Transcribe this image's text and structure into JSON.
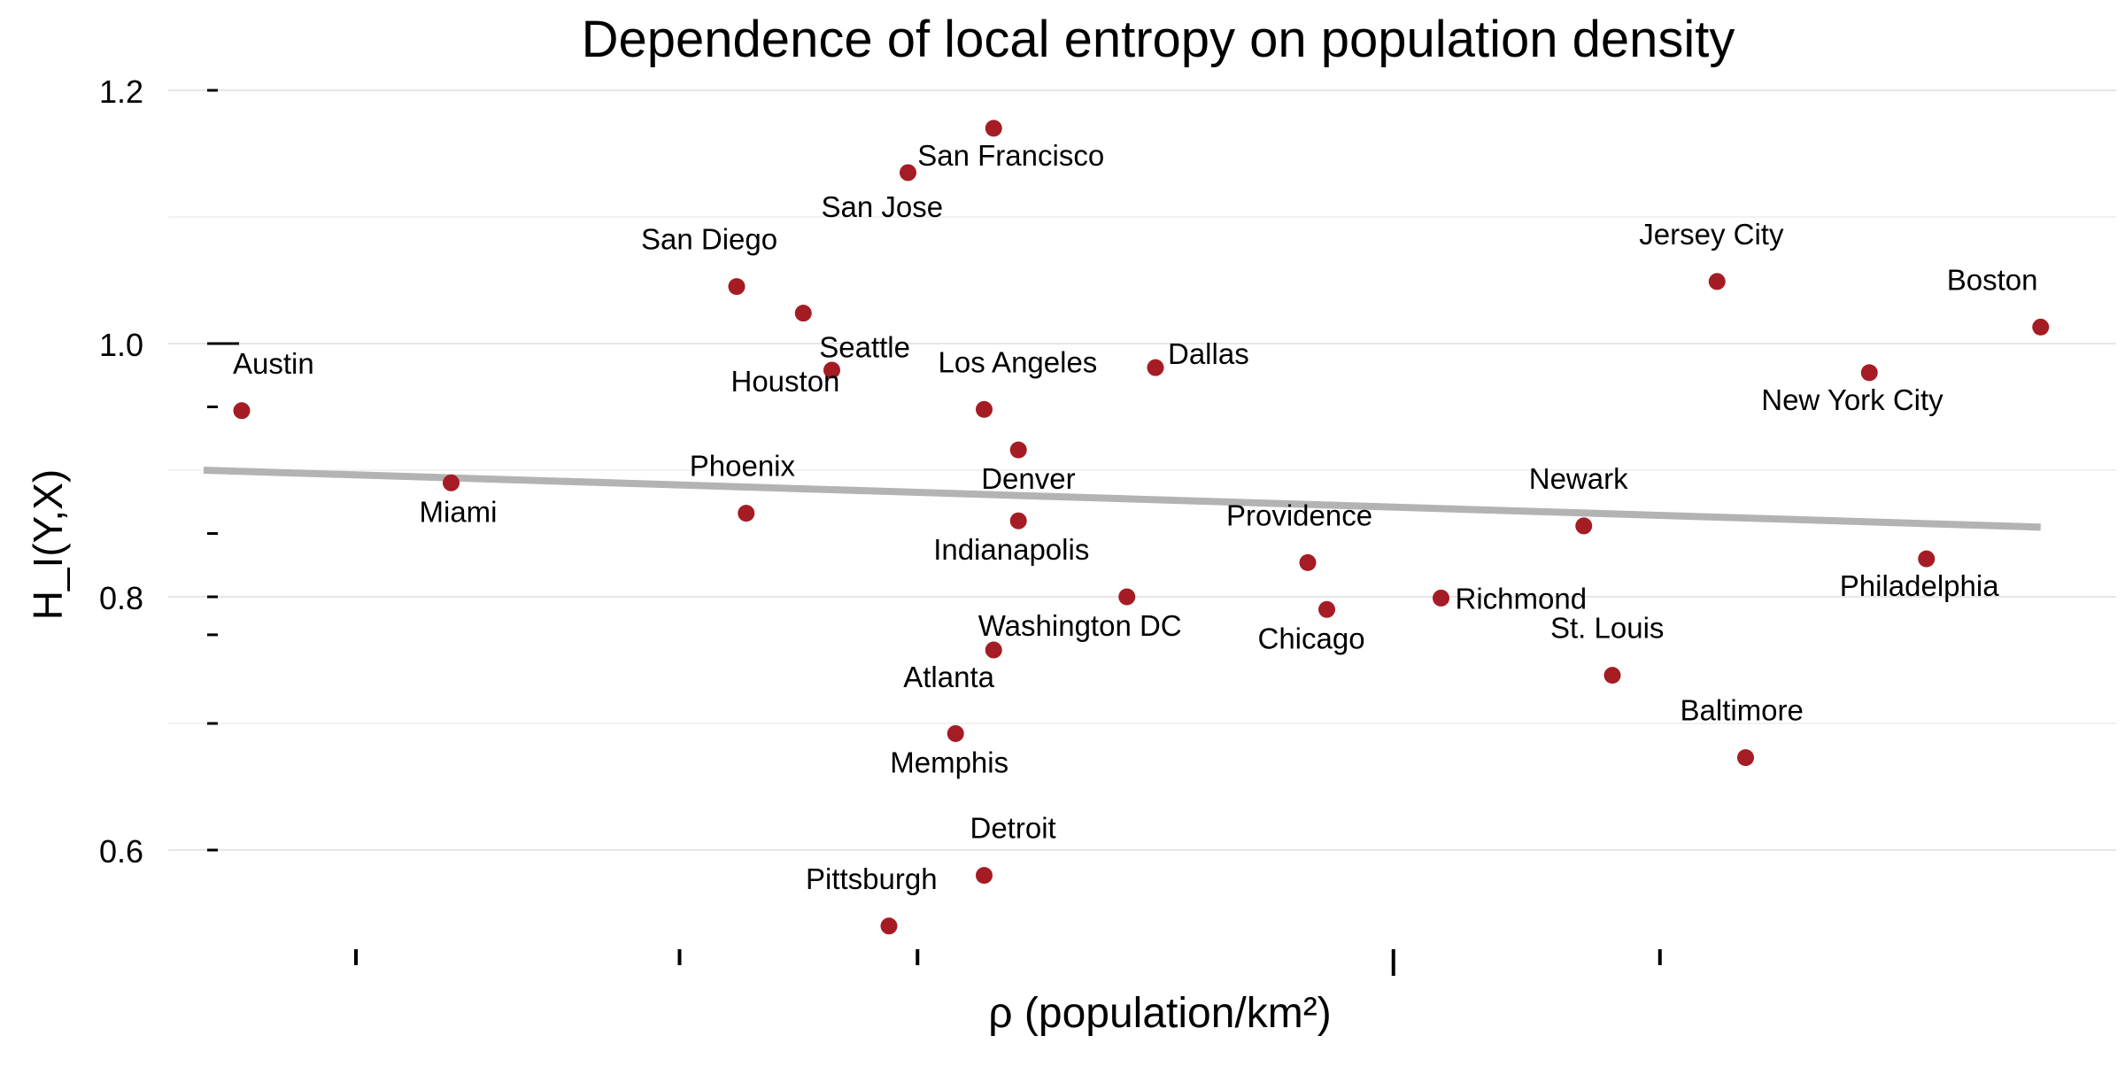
{
  "chart_data": {
    "type": "scatter",
    "title": "Dependence of local entropy on population density",
    "xlabel": "ρ (population/km²)",
    "ylabel": "H_I(Y,X)",
    "ylim": [
      0.53,
      1.2
    ],
    "x_scale": "log",
    "x_tick_labels": [],
    "y_ticks": [
      0.6,
      0.8,
      1.0,
      1.2
    ],
    "y_tick_labels": [
      "0.6",
      "0.8",
      "1.0",
      "1.2"
    ],
    "grid": true,
    "point_color": "#a51c24",
    "trend_color": "#b3b3b3",
    "trend_line": {
      "y_start": 0.9,
      "y_end": 0.855
    },
    "points": [
      {
        "label": "Austin",
        "x": 0.02,
        "y": 0.947
      },
      {
        "label": "Miami",
        "x": 0.13,
        "y": 0.89
      },
      {
        "label": "San Diego",
        "x": 0.28,
        "y": 1.045
      },
      {
        "label": "Phoenix",
        "x": 0.285,
        "y": 0.866
      },
      {
        "label": "Seattle",
        "x": 0.315,
        "y": 1.024
      },
      {
        "label": "Houston",
        "x": 0.33,
        "y": 0.979
      },
      {
        "label": "Pittsburgh",
        "x": 0.36,
        "y": 0.54
      },
      {
        "label": "San Jose",
        "x": 0.37,
        "y": 1.135
      },
      {
        "label": "Memphis",
        "x": 0.395,
        "y": 0.692
      },
      {
        "label": "Detroit",
        "x": 0.41,
        "y": 0.58
      },
      {
        "label": "Los Angeles",
        "x": 0.41,
        "y": 0.948
      },
      {
        "label": "Atlanta",
        "x": 0.415,
        "y": 0.758
      },
      {
        "label": "San Francisco",
        "x": 0.415,
        "y": 1.17
      },
      {
        "label": "Denver",
        "x": 0.428,
        "y": 0.916
      },
      {
        "label": "Indianapolis",
        "x": 0.428,
        "y": 0.86
      },
      {
        "label": "Washington DC",
        "x": 0.485,
        "y": 0.8
      },
      {
        "label": "Dallas",
        "x": 0.5,
        "y": 0.981
      },
      {
        "label": "Providence",
        "x": 0.58,
        "y": 0.827
      },
      {
        "label": "Chicago",
        "x": 0.59,
        "y": 0.79
      },
      {
        "label": "Richmond",
        "x": 0.65,
        "y": 0.799
      },
      {
        "label": "Newark",
        "x": 0.725,
        "y": 0.856
      },
      {
        "label": "St. Louis",
        "x": 0.74,
        "y": 0.738
      },
      {
        "label": "Jersey City",
        "x": 0.795,
        "y": 1.049
      },
      {
        "label": "Baltimore",
        "x": 0.81,
        "y": 0.673
      },
      {
        "label": "New York City",
        "x": 0.875,
        "y": 0.977
      },
      {
        "label": "Philadelphia",
        "x": 0.905,
        "y": 0.83
      },
      {
        "label": "Boston",
        "x": 0.965,
        "y": 1.013
      }
    ]
  }
}
